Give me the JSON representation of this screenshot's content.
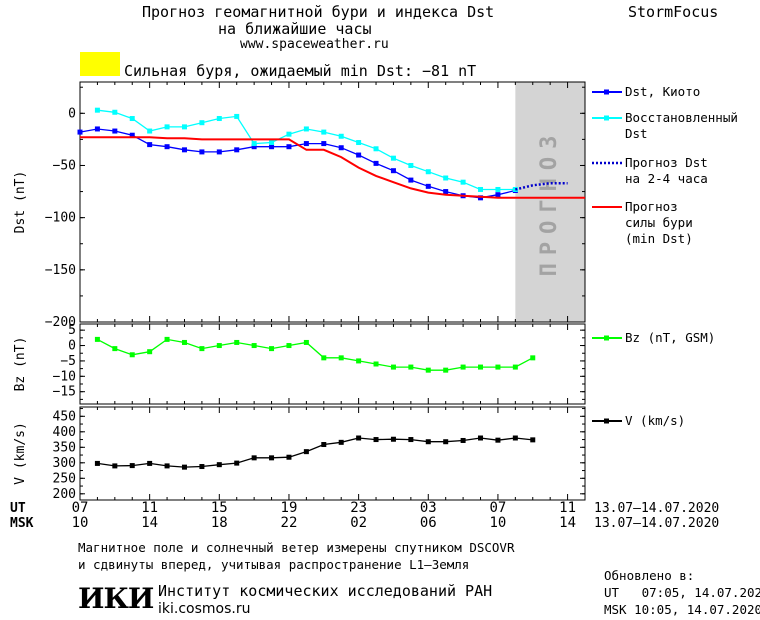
{
  "header": {
    "title_line1": "Прогноз геомагнитной бури и индекса Dst",
    "title_line2": "на ближайшие часы",
    "url": "www.spaceweather.ru",
    "brand": "StormFocus"
  },
  "alert": {
    "text": "Сильная буря, ожидаемый min Dst: −81 nT",
    "color": "#ffff00"
  },
  "shade_label": "ПРОГНОЗ",
  "chart_data": [
    {
      "type": "line",
      "ylabel": "Dst (nT)",
      "ylim": [
        -200,
        30
      ],
      "yticks": [
        0,
        -50,
        -100,
        -150,
        -200
      ],
      "xlim": [
        0,
        29
      ],
      "series": [
        {
          "name": "Dst, Киото",
          "color": "#0000ff",
          "marker": "square",
          "x": [
            0,
            1,
            2,
            3,
            4,
            5,
            6,
            7,
            8,
            9,
            10,
            11,
            12,
            13,
            14,
            15,
            16,
            17,
            18,
            19,
            20,
            21,
            22,
            23,
            24,
            25
          ],
          "y": [
            -18,
            -15,
            -17,
            -21,
            -30,
            -32,
            -35,
            -37,
            -37,
            -35,
            -32,
            -32,
            -32,
            -29,
            -29,
            -33,
            -40,
            -48,
            -55,
            -64,
            -70,
            -75,
            -79,
            -81,
            -78,
            -74
          ]
        },
        {
          "name": "Восстановленный Dst",
          "color": "#00ffff",
          "marker": "square",
          "x": [
            1,
            2,
            3,
            4,
            5,
            6,
            7,
            8,
            9,
            10,
            11,
            12,
            13,
            14,
            15,
            16,
            17,
            18,
            19,
            20,
            21,
            22,
            23,
            24,
            25
          ],
          "y": [
            3,
            1,
            -5,
            -17,
            -13,
            -13,
            -9,
            -5,
            -3,
            -29,
            -28,
            -20,
            -15,
            -18,
            -22,
            -28,
            -34,
            -43,
            -50,
            -56,
            -62,
            -66,
            -73,
            -73,
            -73
          ]
        },
        {
          "name": "Прогноз Dst на 2-4 часа",
          "color": "#0000cc",
          "style": "dotted",
          "x": [
            25,
            26,
            27,
            28
          ],
          "y": [
            -73,
            -69,
            -67,
            -67
          ]
        },
        {
          "name": "Прогноз силы бури (min Dst)",
          "color": "#ff0000",
          "style": "solid",
          "x": [
            0,
            1,
            2,
            3,
            4,
            5,
            6,
            7,
            8,
            9,
            10,
            11,
            12,
            13,
            14,
            15,
            16,
            17,
            18,
            19,
            20,
            21,
            22,
            23,
            24,
            25,
            26,
            27,
            28,
            29
          ],
          "y": [
            -23,
            -23,
            -23,
            -23,
            -23,
            -24,
            -24,
            -25,
            -25,
            -25,
            -25,
            -25,
            -25,
            -35,
            -35,
            -42,
            -52,
            -60,
            -66,
            -72,
            -76,
            -78,
            -79,
            -80,
            -81,
            -81,
            -81,
            -81,
            -81,
            -81
          ]
        }
      ]
    },
    {
      "type": "line",
      "ylabel": "Bz (nT)",
      "ylim": [
        -19,
        7
      ],
      "yticks": [
        5,
        0,
        -5,
        -10,
        -15
      ],
      "xlim": [
        0,
        29
      ],
      "series": [
        {
          "name": "Bz (nT, GSM)",
          "color": "#00ff00",
          "marker": "square",
          "x": [
            1,
            2,
            3,
            4,
            5,
            6,
            7,
            8,
            9,
            10,
            11,
            12,
            13,
            14,
            15,
            16,
            17,
            18,
            19,
            20,
            21,
            22,
            23,
            24,
            25,
            26
          ],
          "y": [
            2,
            -1,
            -3,
            -2,
            2,
            1,
            -1,
            0,
            1,
            0,
            -1,
            0,
            1,
            -4,
            -4,
            -5,
            -6,
            -7,
            -7,
            -8,
            -8,
            -7,
            -7,
            -7,
            -7,
            -4
          ]
        }
      ]
    },
    {
      "type": "line",
      "ylabel": "V (km/s)",
      "ylim": [
        180,
        480
      ],
      "yticks": [
        450,
        400,
        350,
        300,
        250,
        200
      ],
      "xlim": [
        0,
        29
      ],
      "series": [
        {
          "name": "V (km/s)",
          "color": "#000000",
          "marker": "square",
          "x": [
            1,
            2,
            3,
            4,
            5,
            6,
            7,
            8,
            9,
            10,
            11,
            12,
            13,
            14,
            15,
            16,
            17,
            18,
            19,
            20,
            21,
            22,
            23,
            24,
            25,
            26
          ],
          "y": [
            298,
            290,
            291,
            298,
            290,
            286,
            288,
            294,
            299,
            316,
            316,
            318,
            336,
            359,
            366,
            380,
            375,
            376,
            375,
            368,
            368,
            372,
            380,
            373,
            380,
            374
          ]
        }
      ]
    }
  ],
  "time_axis": {
    "ut_label": "UT",
    "msk_label": "MSK",
    "ut_ticks": [
      "07",
      "11",
      "15",
      "19",
      "23",
      "03",
      "07",
      "11"
    ],
    "msk_ticks": [
      "10",
      "14",
      "18",
      "22",
      "02",
      "06",
      "10",
      "14"
    ],
    "range": "13.07–14.07.2020"
  },
  "footer": {
    "note_line1": "Магнитное поле и солнечный ветер измерены спутником DSCOVR",
    "note_line2": "и сдвинуты вперед, учитывая распространение L1–Земля",
    "logo": "ИКИ",
    "institute": "Институт космических исследований РАН",
    "institute_url": "iki.cosmos.ru",
    "updated_label": "Обновлено в:",
    "updated_ut": "UT   07:05, 14.07.2020",
    "updated_msk": "MSK 10:05, 14.07.2020"
  }
}
